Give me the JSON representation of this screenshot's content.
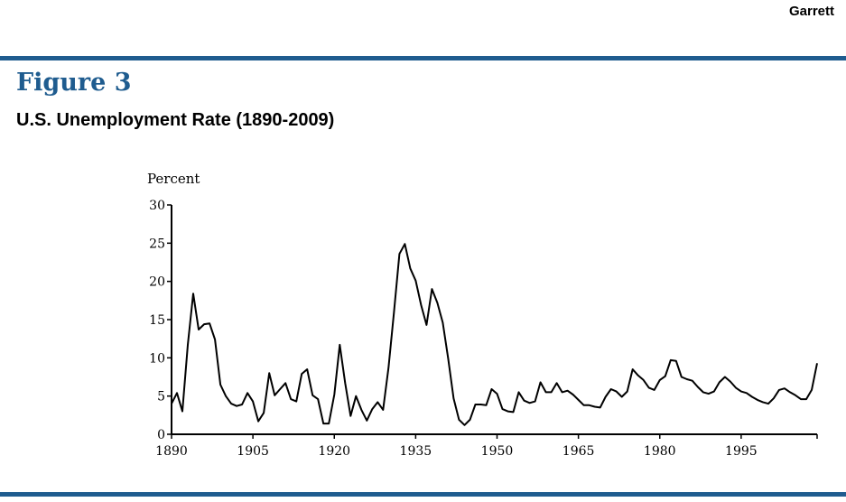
{
  "header": {
    "author": "Garrett"
  },
  "figure": {
    "label": "Figure 3",
    "title": "U.S. Unemployment Rate (1890-2009)"
  },
  "colors": {
    "rule": "#1f5c8f",
    "label": "#1f5c8f",
    "line": "#000000"
  },
  "chart_data": {
    "type": "line",
    "ylabel": "Percent",
    "xlim": [
      1890,
      2009
    ],
    "ylim": [
      0,
      30
    ],
    "yticks": [
      "0",
      "5",
      "10",
      "15",
      "20",
      "25",
      "30"
    ],
    "xticks": [
      "1890",
      "1905",
      "1920",
      "1935",
      "1950",
      "1965",
      "1980",
      "1995"
    ],
    "grid": false,
    "series": [
      {
        "x": [
          1890,
          1891,
          1892,
          1893,
          1894,
          1895,
          1896,
          1897,
          1898,
          1899,
          1900,
          1901,
          1902,
          1903,
          1904,
          1905,
          1906,
          1907,
          1908,
          1909,
          1910,
          1911,
          1912,
          1913,
          1914,
          1915,
          1916,
          1917,
          1918,
          1919,
          1920,
          1921,
          1922,
          1923,
          1924,
          1925,
          1926,
          1927,
          1928,
          1929,
          1930,
          1931,
          1932,
          1933,
          1934,
          1935,
          1936,
          1937,
          1938,
          1939,
          1940,
          1941,
          1942,
          1943,
          1944,
          1945,
          1946,
          1947,
          1948,
          1949,
          1950,
          1951,
          1952,
          1953,
          1954,
          1955,
          1956,
          1957,
          1958,
          1959,
          1960,
          1961,
          1962,
          1963,
          1964,
          1965,
          1966,
          1967,
          1968,
          1969,
          1970,
          1971,
          1972,
          1973,
          1974,
          1975,
          1976,
          1977,
          1978,
          1979,
          1980,
          1981,
          1982,
          1983,
          1984,
          1985,
          1986,
          1987,
          1988,
          1989,
          1990,
          1991,
          1992,
          1993,
          1994,
          1995,
          1996,
          1997,
          1998,
          1999,
          2000,
          2001,
          2002,
          2003,
          2004,
          2005,
          2006,
          2007,
          2008,
          2009
        ],
        "values": [
          4.0,
          5.4,
          3.0,
          11.7,
          18.4,
          13.7,
          14.4,
          14.5,
          12.4,
          6.5,
          5.0,
          4.0,
          3.7,
          3.9,
          5.4,
          4.3,
          1.7,
          2.8,
          8.0,
          5.1,
          5.9,
          6.7,
          4.6,
          4.3,
          7.9,
          8.5,
          5.1,
          4.6,
          1.4,
          1.4,
          5.2,
          11.7,
          6.7,
          2.4,
          5.0,
          3.2,
          1.8,
          3.3,
          4.2,
          3.2,
          8.7,
          15.9,
          23.6,
          24.9,
          21.7,
          20.1,
          16.9,
          14.3,
          19.0,
          17.2,
          14.6,
          9.9,
          4.7,
          1.9,
          1.2,
          1.9,
          3.9,
          3.9,
          3.8,
          5.9,
          5.3,
          3.3,
          3.0,
          2.9,
          5.5,
          4.4,
          4.1,
          4.3,
          6.8,
          5.5,
          5.5,
          6.7,
          5.5,
          5.7,
          5.2,
          4.5,
          3.8,
          3.8,
          3.6,
          3.5,
          4.9,
          5.9,
          5.6,
          4.9,
          5.6,
          8.5,
          7.7,
          7.1,
          6.1,
          5.8,
          7.1,
          7.6,
          9.7,
          9.6,
          7.5,
          7.2,
          7.0,
          6.2,
          5.5,
          5.3,
          5.6,
          6.8,
          7.5,
          6.9,
          6.1,
          5.6,
          5.4,
          4.9,
          4.5,
          4.2,
          4.0,
          4.7,
          5.8,
          6.0,
          5.5,
          5.1,
          4.6,
          4.6,
          5.8,
          9.3
        ]
      }
    ]
  }
}
